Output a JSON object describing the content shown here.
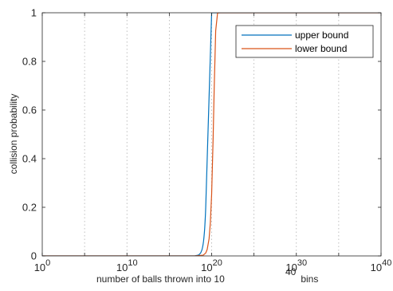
{
  "chart_data": {
    "type": "line",
    "xscale": "log",
    "xlim": [
      1,
      1e+40
    ],
    "ylim": [
      0,
      1
    ],
    "grid": true,
    "grid_axis": "x",
    "xlabel_text": "number of balls thrown into 10",
    "xlabel_sup": "40",
    "xlabel_suffix": " bins",
    "ylabel": "collision probability",
    "legend_position": "top-right",
    "xticks": [
      {
        "base": "10",
        "exp": "0",
        "value": 1
      },
      {
        "base": "10",
        "exp": "10",
        "value": 10000000000.0
      },
      {
        "base": "10",
        "exp": "20",
        "value": 1e+20
      },
      {
        "base": "10",
        "exp": "30",
        "value": 1e+30
      },
      {
        "base": "10",
        "exp": "40",
        "value": 1e+40
      }
    ],
    "yticks": [
      "0",
      "0.2",
      "0.4",
      "0.6",
      "0.8",
      "1"
    ],
    "series": [
      {
        "name": "upper bound",
        "color": "#0072bd",
        "x": [
          1,
          10000000000.0,
          1e+17,
          1e+18,
          3e+18,
          5e+18,
          7e+18,
          8e+18,
          9e+18,
          1e+19,
          1.1e+19,
          1.2e+19,
          1.3e+19,
          1.4e+19,
          1.5e+19,
          1.6e+19,
          1.7e+19,
          1.8e+19,
          1.9e+19,
          2e+19,
          1e+20,
          1e+30,
          1e+40
        ],
        "y": [
          0,
          0,
          0,
          0,
          0.004,
          0.012,
          0.024,
          0.032,
          0.04,
          0.05,
          0.06,
          0.072,
          0.085,
          0.098,
          0.112,
          0.128,
          0.145,
          0.162,
          0.18,
          0.2,
          1,
          1,
          1
        ]
      },
      {
        "name": "lower bound",
        "color": "#d95319",
        "x": [
          1,
          10000000000.0,
          1e+18,
          1e+19,
          2e+19,
          3e+19,
          5e+19,
          7e+19,
          1e+20,
          1.5e+20,
          2e+20,
          3e+20,
          5e+20,
          1e+21,
          1e+22,
          1e+30,
          1e+40
        ],
        "y": [
          0,
          0,
          0,
          0.003,
          0.012,
          0.027,
          0.071,
          0.136,
          0.254,
          0.486,
          0.689,
          0.926,
          0.999,
          1,
          1,
          1,
          1
        ]
      }
    ]
  }
}
